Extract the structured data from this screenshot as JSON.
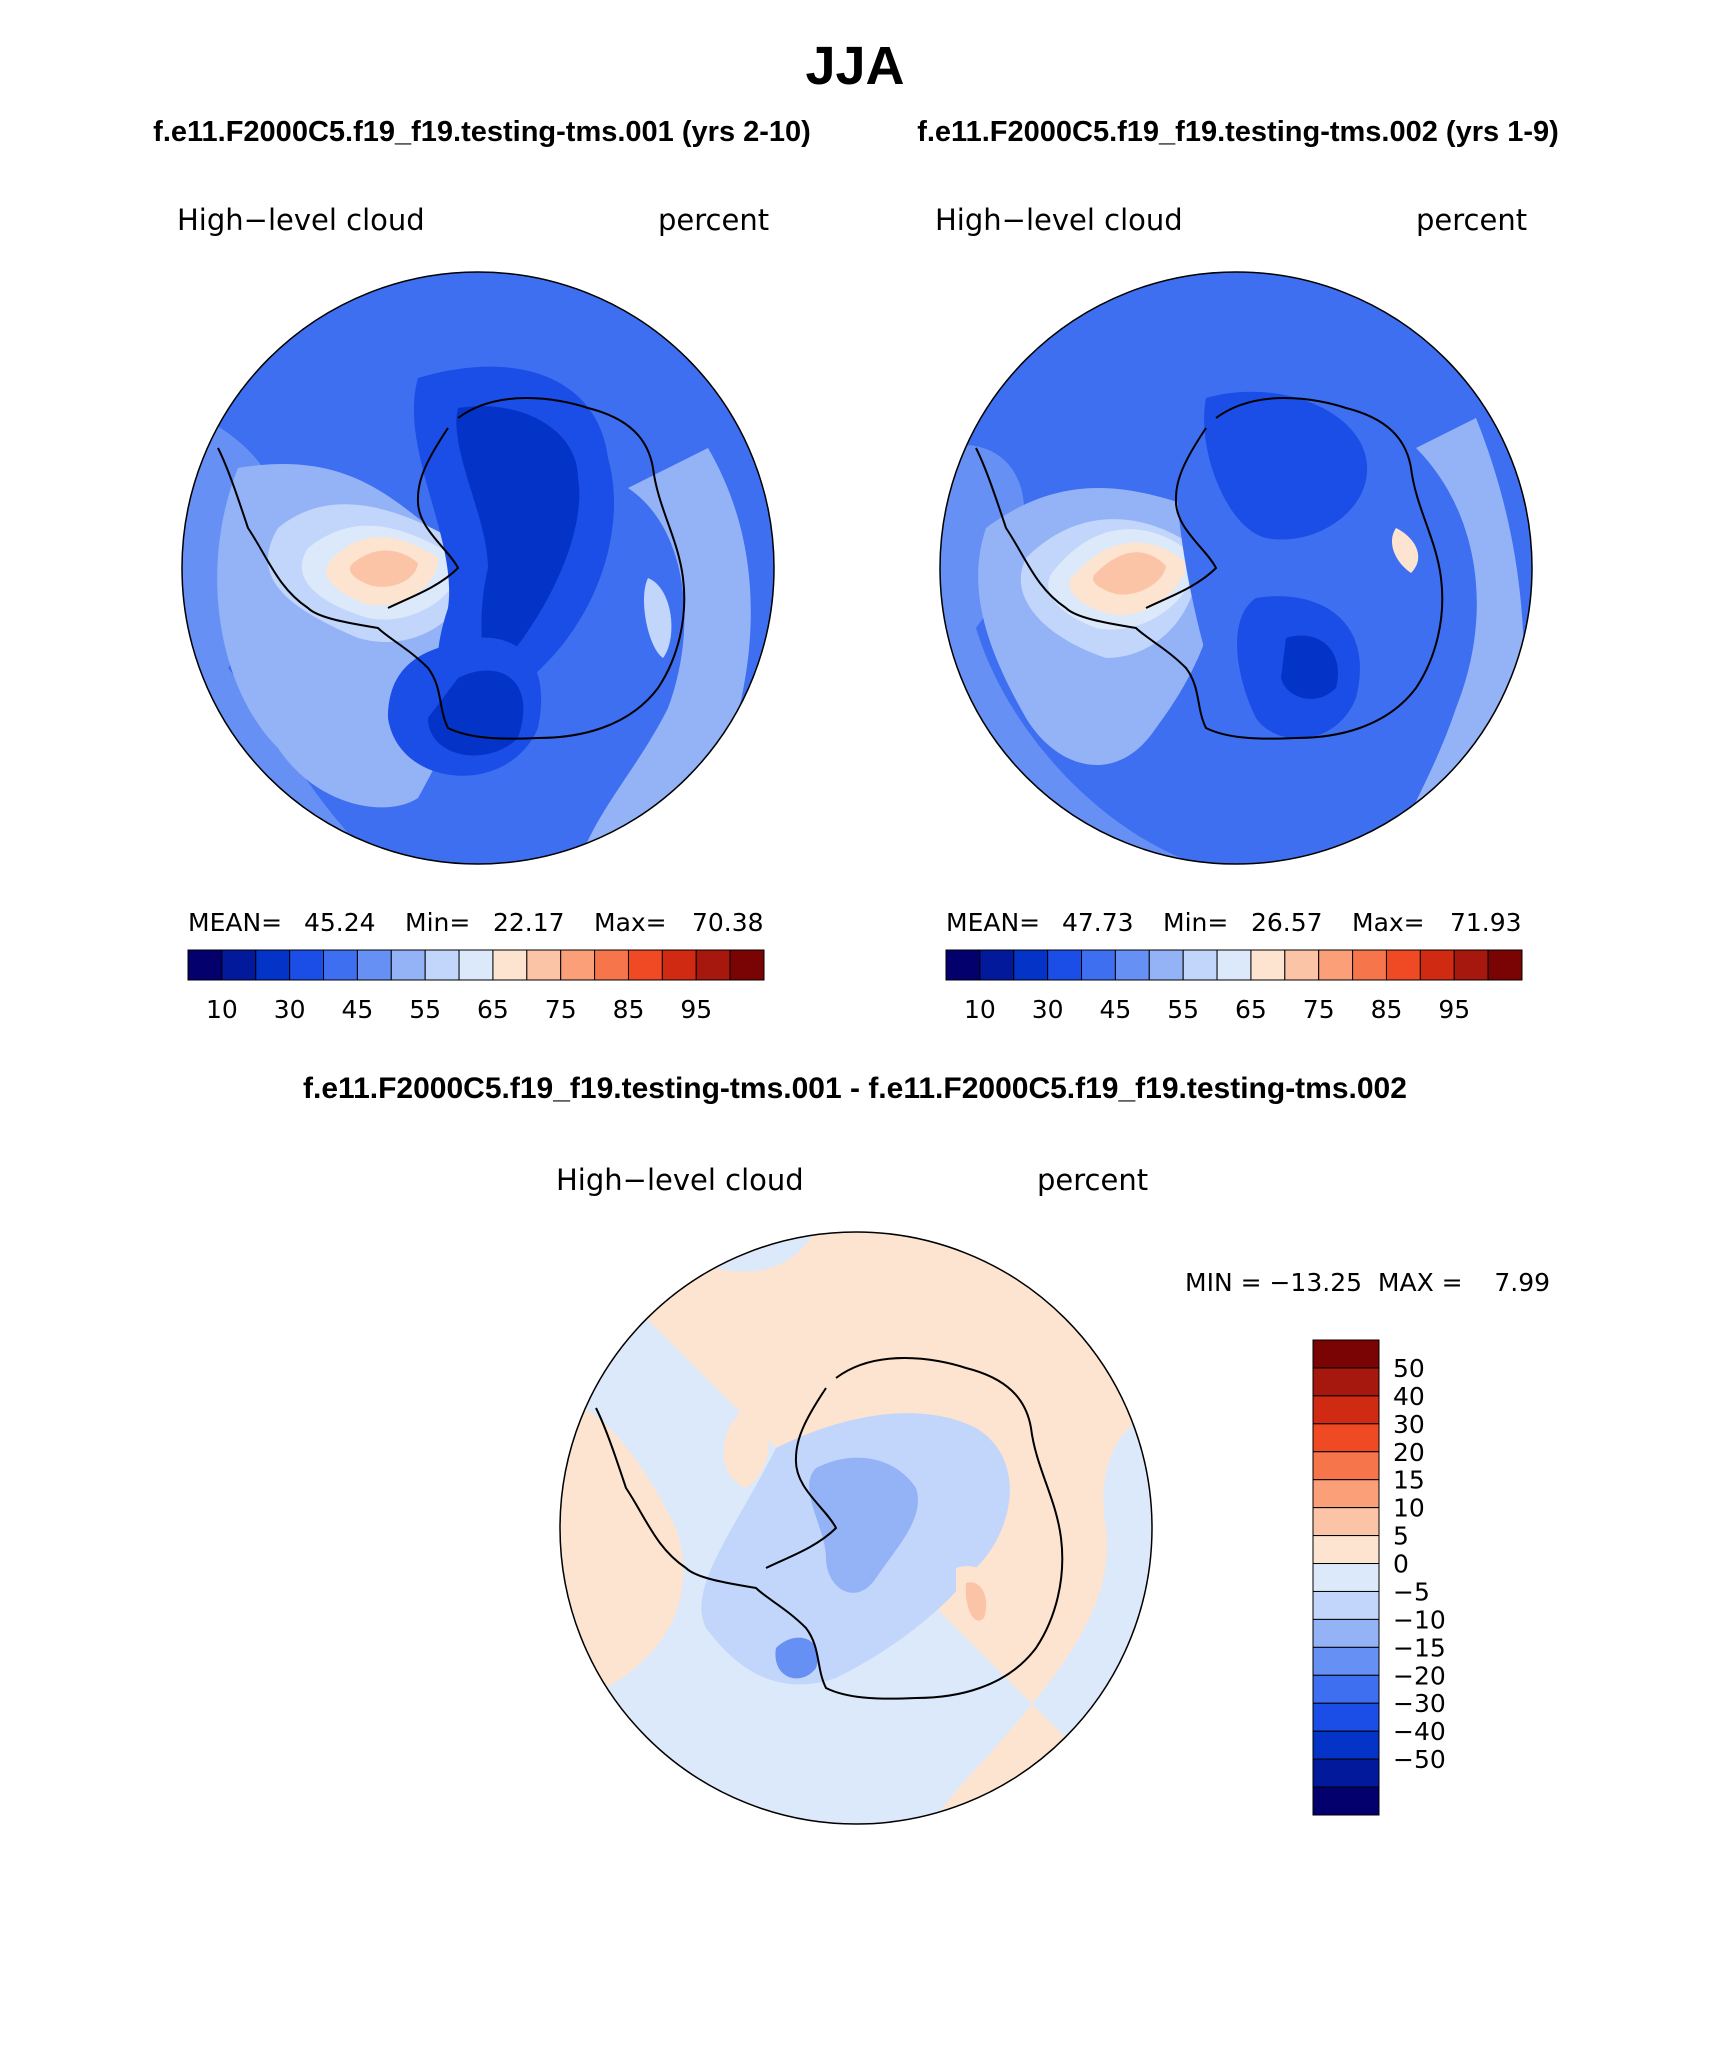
{
  "title": "JJA",
  "panels": [
    {
      "case_label": "f.e11.F2000C5.f19_f19.testing-tms.001 (yrs 2-10)",
      "variable": "High−level cloud",
      "units": "percent",
      "stats": {
        "mean_label": "MEAN=",
        "mean": "45.24",
        "min_label": "Min=",
        "min": "22.17",
        "max_label": "Max=",
        "max": "70.38"
      },
      "colorbar_ticks": [
        "10",
        "30",
        "45",
        "55",
        "65",
        "75",
        "85",
        "95"
      ]
    },
    {
      "case_label": "f.e11.F2000C5.f19_f19.testing-tms.002 (yrs 1-9)",
      "variable": "High−level cloud",
      "units": "percent",
      "stats": {
        "mean_label": "MEAN=",
        "mean": "47.73",
        "min_label": "Min=",
        "min": "26.57",
        "max_label": "Max=",
        "max": "71.93"
      },
      "colorbar_ticks": [
        "10",
        "30",
        "45",
        "55",
        "65",
        "75",
        "85",
        "95"
      ]
    }
  ],
  "diff": {
    "title": "f.e11.F2000C5.f19_f19.testing-tms.001 - f.e11.F2000C5.f19_f19.testing-tms.002",
    "variable": "High−level cloud",
    "units": "percent",
    "minmax_text": "MIN = −13.25  MAX =    7.99",
    "colorbar_ticks": [
      "50",
      "40",
      "30",
      "20",
      "15",
      "10",
      "5",
      "0",
      "−5",
      "−10",
      "−15",
      "−20",
      "−30",
      "−40",
      "−50"
    ]
  },
  "colors": {
    "scale_16": [
      "#03006d",
      "#02199b",
      "#0433c7",
      "#1a4ee6",
      "#3e6ff0",
      "#6790f4",
      "#94b3f7",
      "#c2d5fa",
      "#dbe9fb",
      "#fde4d1",
      "#fcc4a7",
      "#fa9f77",
      "#f6754b",
      "#ef4a24",
      "#d12a12",
      "#a6170d",
      "#7a0403"
    ],
    "land_outline": "#000000"
  }
}
